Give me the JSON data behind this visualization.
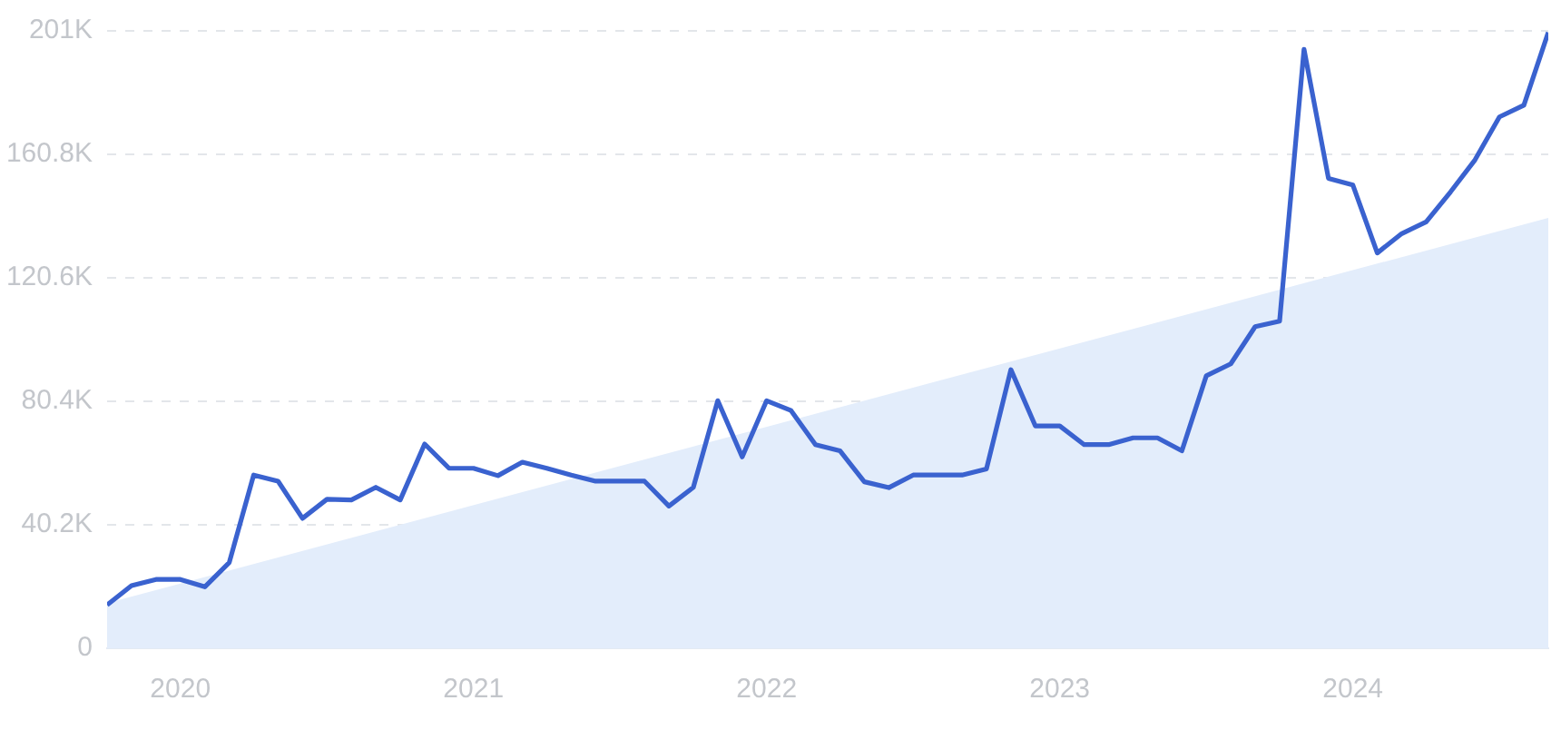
{
  "chart_data": {
    "type": "line",
    "x": [
      "2019-10",
      "2019-11",
      "2019-12",
      "2020-01",
      "2020-02",
      "2020-03",
      "2020-04",
      "2020-05",
      "2020-06",
      "2020-07",
      "2020-08",
      "2020-09",
      "2020-10",
      "2020-11",
      "2020-12",
      "2021-01",
      "2021-02",
      "2021-03",
      "2021-04",
      "2021-05",
      "2021-06",
      "2021-07",
      "2021-08",
      "2021-09",
      "2021-10",
      "2021-11",
      "2021-12",
      "2022-01",
      "2022-02",
      "2022-03",
      "2022-04",
      "2022-05",
      "2022-06",
      "2022-07",
      "2022-08",
      "2022-09",
      "2022-10",
      "2022-11",
      "2022-12",
      "2023-01",
      "2023-02",
      "2023-03",
      "2023-04",
      "2023-05",
      "2023-06",
      "2023-07",
      "2023-08",
      "2023-09",
      "2023-10",
      "2023-11",
      "2023-12",
      "2024-01",
      "2024-02",
      "2024-03",
      "2024-04",
      "2024-05",
      "2024-06",
      "2024-07",
      "2024-08",
      "2024-09"
    ],
    "series": [
      {
        "type": "area",
        "color": "#e3edfb",
        "x": [
          "2019-10",
          "2024-09"
        ],
        "values": [
          14700,
          140100
        ]
      },
      {
        "color": "#3a62cf",
        "values": [
          14100,
          20400,
          22400,
          22400,
          20000,
          27900,
          56400,
          54400,
          42300,
          48500,
          48300,
          52400,
          48300,
          66500,
          58600,
          58600,
          56200,
          60600,
          58600,
          56400,
          54400,
          54400,
          54400,
          46300,
          52400,
          80600,
          62300,
          80600,
          77400,
          66300,
          64300,
          54200,
          52300,
          56400,
          56400,
          56400,
          58400,
          90700,
          72400,
          72400,
          66300,
          66300,
          68500,
          68500,
          64300,
          88700,
          92600,
          104700,
          106500,
          195000,
          153000,
          150800,
          128700,
          135000,
          138800,
          148600,
          159000,
          173000,
          176800,
          200500
        ]
      }
    ],
    "xlim": [
      "2019-10",
      "2024-09"
    ],
    "xticks": [
      "2020",
      "2021",
      "2022",
      "2023",
      "2024"
    ],
    "ylim": [
      0,
      201000
    ],
    "yticks": [
      {
        "value": 0,
        "label": "0"
      },
      {
        "value": 40200,
        "label": "40.2K"
      },
      {
        "value": 80400,
        "label": "80.4K"
      },
      {
        "value": 120600,
        "label": "120.6K"
      },
      {
        "value": 160800,
        "label": "160.8K"
      },
      {
        "value": 201000,
        "label": "201K"
      }
    ],
    "grid": "y",
    "legend": false,
    "marker": "none",
    "line_style": "solid"
  }
}
